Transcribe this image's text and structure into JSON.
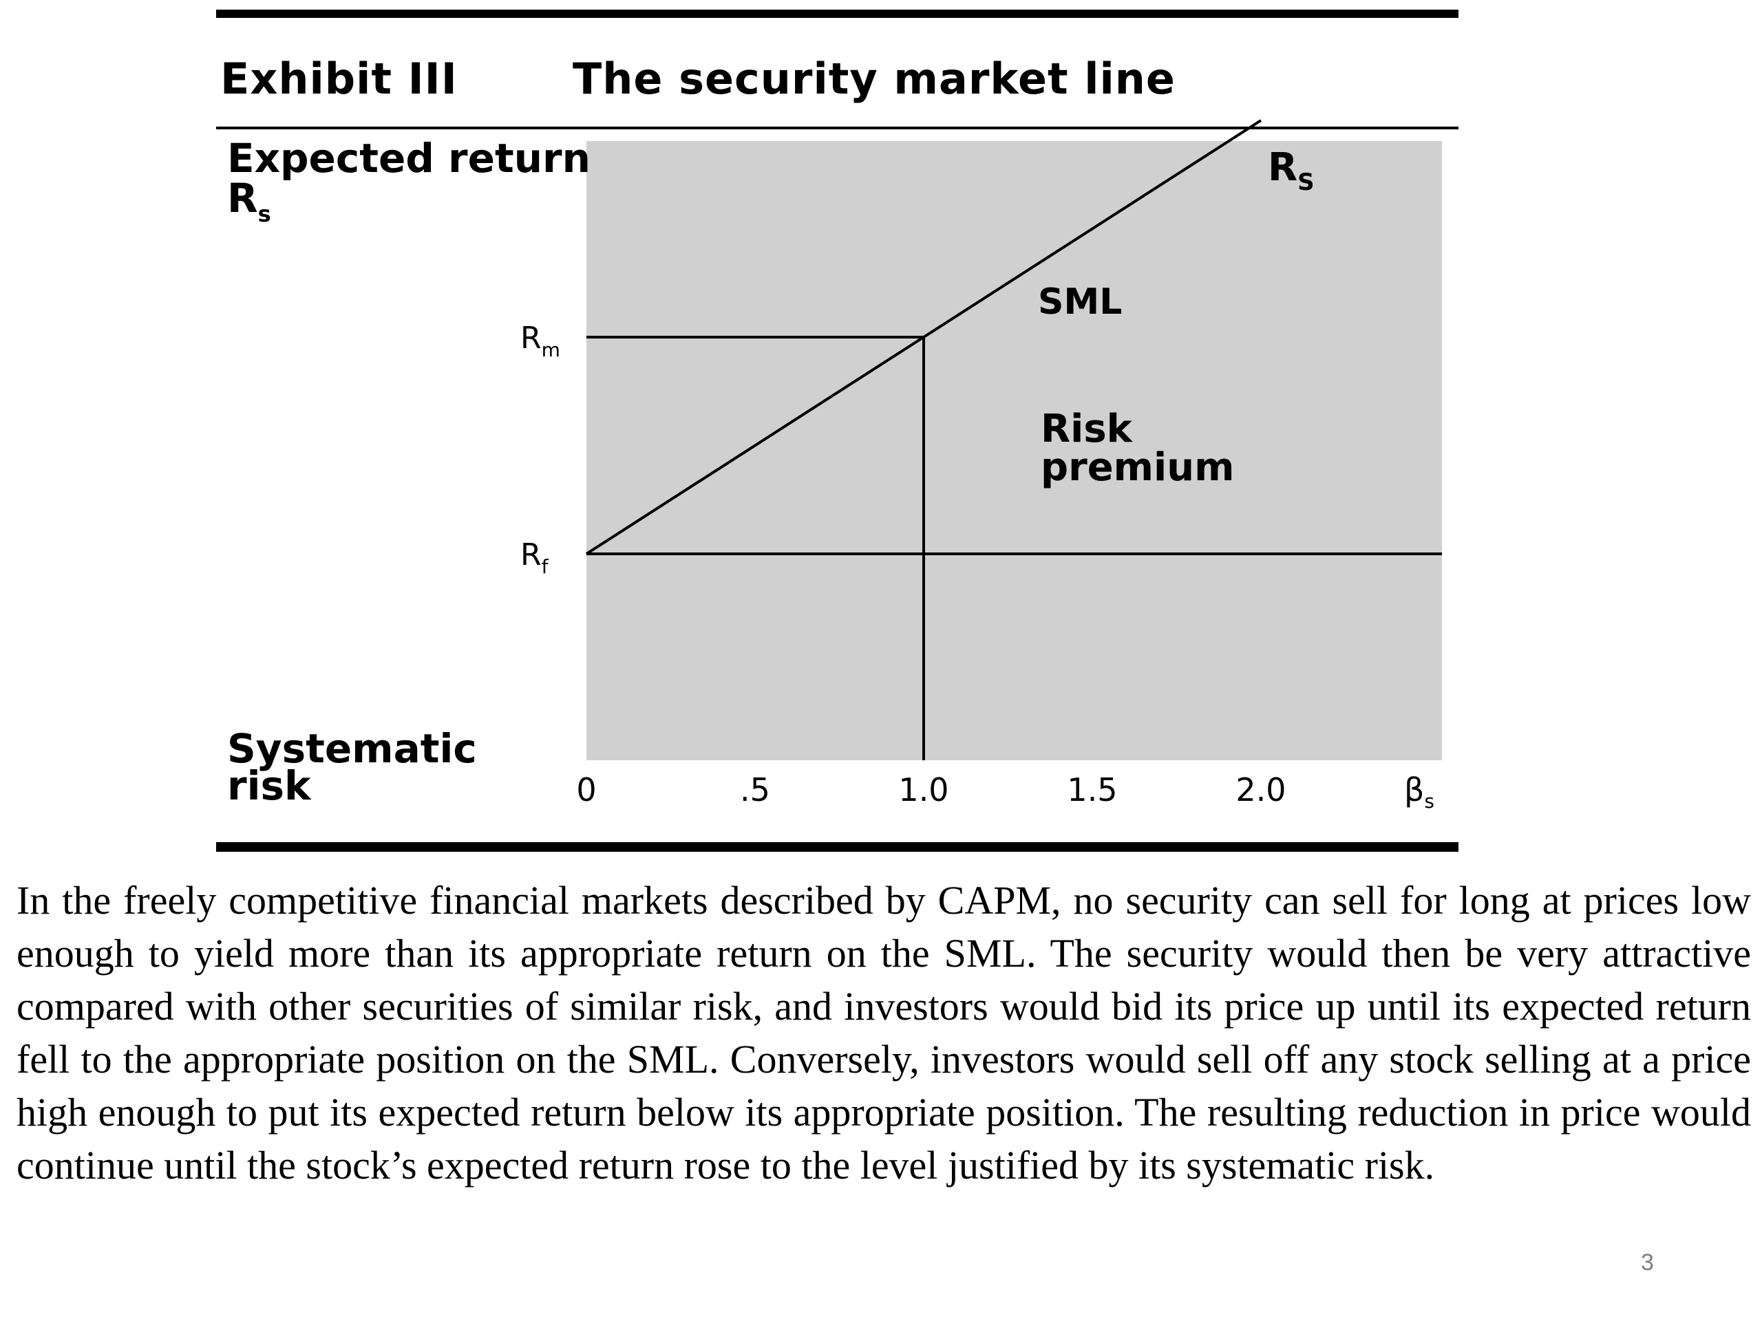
{
  "exhibit": {
    "label": "Exhibit III",
    "title": "The security market line"
  },
  "chart_data": {
    "type": "line",
    "y_axis_label_line1": "Expected return",
    "y_axis_label_symbol": "R",
    "y_axis_label_sub": "s",
    "x_axis_label_line1": "Systematic",
    "x_axis_label_line2": "risk",
    "x_axis_symbol": "β",
    "x_axis_symbol_sub": "s",
    "xlim": [
      0,
      2.5
    ],
    "x_ticks": [
      {
        "value": 0,
        "label": "0"
      },
      {
        "value": 0.5,
        "label": ".5"
      },
      {
        "value": 1.0,
        "label": "1.0"
      },
      {
        "value": 1.5,
        "label": "1.5"
      },
      {
        "value": 2.0,
        "label": "2.0"
      }
    ],
    "y_markers": [
      {
        "key": "rm",
        "symbol": "R",
        "sub": "m",
        "value": 2.05
      },
      {
        "key": "rf",
        "symbol": "R",
        "sub": "f",
        "value": 1.0
      }
    ],
    "ylim": [
      0,
      3.1
    ],
    "series": [
      {
        "name": "SML",
        "x": [
          0,
          1.0,
          2.0
        ],
        "y": [
          1.0,
          2.05,
          3.1
        ]
      }
    ],
    "line_end_label_symbol": "R",
    "line_end_label_sub": "S",
    "series_label": "SML",
    "annotation_line1": "Risk",
    "annotation_line2": "premium",
    "plot_background": "#d0d0d0",
    "grid": false
  },
  "paragraph": "In the freely competitive financial markets described by CAPM, no security can sell for long at prices low enough to yield more than its appropriate return on the SML. The security would then be very attractive compared with other securities of similar risk, and investors would bid its price up until its expected return fell to the appropriate position on the SML. Conversely, investors would sell off any stock selling at a price high enough to put its expected return below its appropriate position. The resulting reduction in price would continue until the stock’s expected return rose to the level justified by its systematic risk.",
  "page_number": "3"
}
